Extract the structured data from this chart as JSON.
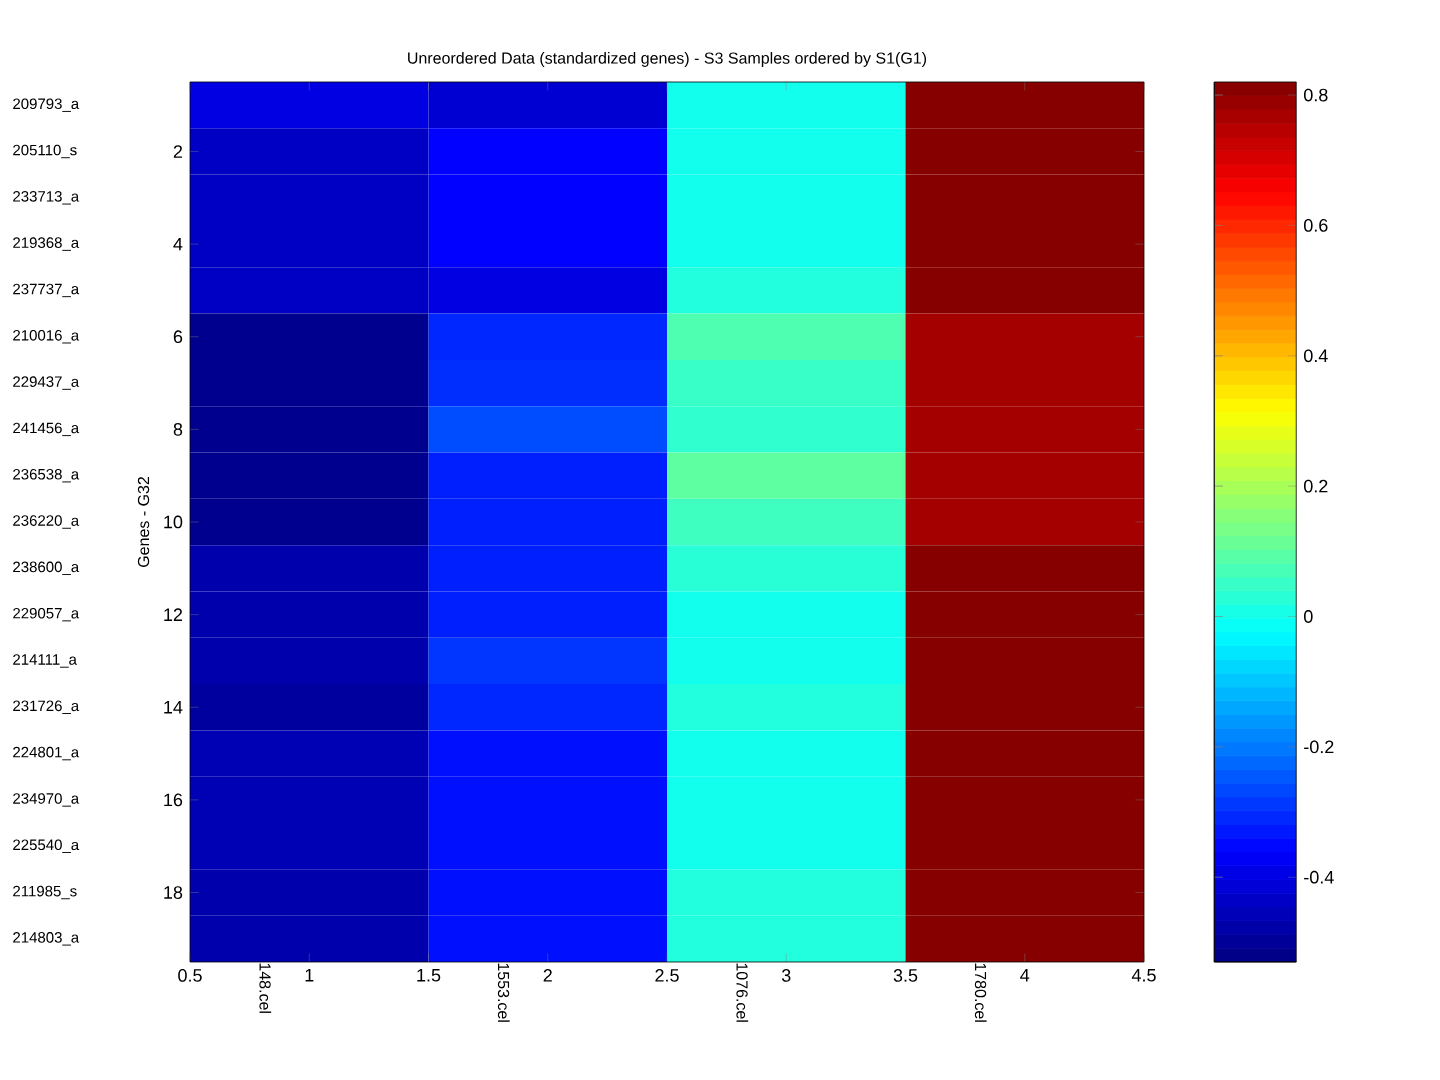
{
  "chart_data": {
    "type": "heatmap",
    "title": "Unreordered Data (standardized genes) - S3 Samples ordered by S1(G1)",
    "ylabel": "Genes - G32",
    "categories": [
      "148.cel",
      "1553.cel",
      "1076.cel",
      "1780.cel"
    ],
    "y_categories": [
      "209793_a",
      "205110_s",
      "233713_a",
      "219368_a",
      "237737_a",
      "210016_a",
      "229437_a",
      "241456_a",
      "236538_a",
      "236220_a",
      "238600_a",
      "229057_a",
      "214111_a",
      "231726_a",
      "224801_a",
      "234970_a",
      "225540_a",
      "211985_s",
      "214803_a"
    ],
    "cells": [
      [
        -0.4,
        -0.42,
        0.0,
        0.81
      ],
      [
        -0.44,
        -0.36,
        0.0,
        0.81
      ],
      [
        -0.44,
        -0.36,
        0.0,
        0.81
      ],
      [
        -0.44,
        -0.36,
        0.0,
        0.81
      ],
      [
        -0.44,
        -0.4,
        0.02,
        0.81
      ],
      [
        -0.51,
        -0.31,
        0.08,
        0.77
      ],
      [
        -0.51,
        -0.3,
        0.05,
        0.77
      ],
      [
        -0.51,
        -0.26,
        0.04,
        0.77
      ],
      [
        -0.51,
        -0.32,
        0.1,
        0.77
      ],
      [
        -0.51,
        -0.32,
        0.06,
        0.77
      ],
      [
        -0.47,
        -0.32,
        0.03,
        0.81
      ],
      [
        -0.47,
        -0.32,
        0.0,
        0.81
      ],
      [
        -0.47,
        -0.29,
        0.0,
        0.81
      ],
      [
        -0.49,
        -0.31,
        0.02,
        0.81
      ],
      [
        -0.46,
        -0.34,
        0.0,
        0.81
      ],
      [
        -0.46,
        -0.34,
        0.0,
        0.81
      ],
      [
        -0.46,
        -0.34,
        0.0,
        0.81
      ],
      [
        -0.47,
        -0.34,
        0.02,
        0.81
      ],
      [
        -0.47,
        -0.34,
        0.02,
        0.81
      ]
    ],
    "clim": [
      -0.53,
      0.82
    ],
    "cticks": [
      -0.4,
      -0.2,
      0,
      0.2,
      0.4,
      0.6,
      0.8
    ],
    "y2_categories": [
      null,
      "2",
      null,
      "4",
      null,
      "6",
      null,
      "8",
      null,
      "10",
      null,
      "12",
      null,
      "14",
      null,
      "16",
      null,
      "18",
      null
    ],
    "annotations": [
      "0.5",
      "1",
      "1.5",
      "2",
      "2.5",
      "3",
      "3.5",
      "4",
      "4.5"
    ]
  }
}
